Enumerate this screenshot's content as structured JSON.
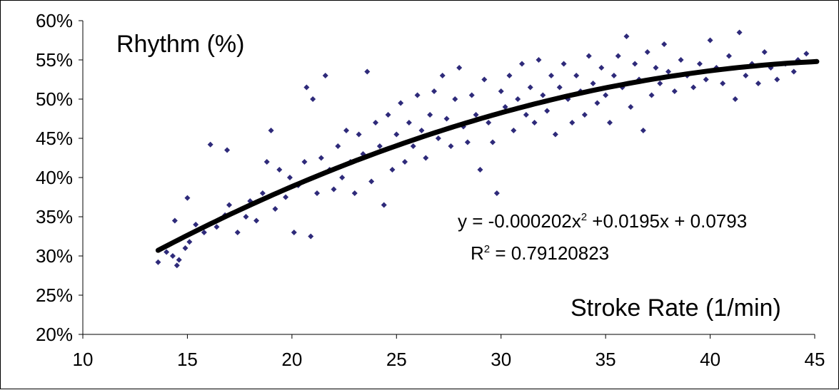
{
  "chart_data": {
    "type": "scatter",
    "title": "",
    "ylabel": "Rhythm (%)",
    "xlabel": "Stroke Rate (1/min)",
    "xlim": [
      10,
      45
    ],
    "ylim": [
      0.2,
      0.6
    ],
    "x_ticks": [
      "10",
      "15",
      "20",
      "25",
      "30",
      "35",
      "40",
      "45"
    ],
    "y_ticks": [
      "20%",
      "25%",
      "30%",
      "35%",
      "40%",
      "45%",
      "50%",
      "55%",
      "60%"
    ],
    "marker_color": "#2e2a7a",
    "trend_color": "#000000",
    "scatter_points": [
      [
        13.6,
        0.292
      ],
      [
        14.0,
        0.305
      ],
      [
        14.3,
        0.3
      ],
      [
        14.5,
        0.288
      ],
      [
        14.6,
        0.295
      ],
      [
        14.4,
        0.345
      ],
      [
        14.9,
        0.31
      ],
      [
        15.1,
        0.318
      ],
      [
        15.0,
        0.374
      ],
      [
        15.4,
        0.34
      ],
      [
        15.8,
        0.33
      ],
      [
        16.1,
        0.442
      ],
      [
        16.4,
        0.337
      ],
      [
        16.8,
        0.352
      ],
      [
        17.0,
        0.365
      ],
      [
        16.9,
        0.435
      ],
      [
        17.4,
        0.33
      ],
      [
        17.8,
        0.35
      ],
      [
        18.0,
        0.37
      ],
      [
        18.3,
        0.345
      ],
      [
        18.6,
        0.38
      ],
      [
        18.8,
        0.42
      ],
      [
        19.0,
        0.46
      ],
      [
        19.2,
        0.36
      ],
      [
        19.4,
        0.41
      ],
      [
        19.7,
        0.375
      ],
      [
        19.9,
        0.4
      ],
      [
        20.1,
        0.33
      ],
      [
        20.3,
        0.39
      ],
      [
        20.6,
        0.42
      ],
      [
        20.7,
        0.515
      ],
      [
        20.9,
        0.325
      ],
      [
        21.0,
        0.5
      ],
      [
        21.2,
        0.38
      ],
      [
        21.4,
        0.425
      ],
      [
        21.6,
        0.53
      ],
      [
        21.8,
        0.41
      ],
      [
        22.0,
        0.385
      ],
      [
        22.2,
        0.44
      ],
      [
        22.4,
        0.4
      ],
      [
        22.6,
        0.46
      ],
      [
        22.8,
        0.42
      ],
      [
        23.0,
        0.38
      ],
      [
        23.2,
        0.455
      ],
      [
        23.4,
        0.43
      ],
      [
        23.6,
        0.535
      ],
      [
        23.8,
        0.395
      ],
      [
        24.0,
        0.47
      ],
      [
        24.2,
        0.44
      ],
      [
        24.4,
        0.365
      ],
      [
        24.6,
        0.48
      ],
      [
        24.8,
        0.41
      ],
      [
        25.0,
        0.455
      ],
      [
        25.2,
        0.495
      ],
      [
        25.4,
        0.42
      ],
      [
        25.6,
        0.47
      ],
      [
        25.8,
        0.44
      ],
      [
        26.0,
        0.505
      ],
      [
        26.2,
        0.46
      ],
      [
        26.4,
        0.425
      ],
      [
        26.6,
        0.48
      ],
      [
        26.8,
        0.51
      ],
      [
        27.0,
        0.45
      ],
      [
        27.2,
        0.53
      ],
      [
        27.4,
        0.475
      ],
      [
        27.6,
        0.44
      ],
      [
        27.8,
        0.5
      ],
      [
        28.0,
        0.54
      ],
      [
        28.2,
        0.465
      ],
      [
        28.4,
        0.445
      ],
      [
        28.6,
        0.505
      ],
      [
        28.8,
        0.48
      ],
      [
        29.0,
        0.41
      ],
      [
        29.2,
        0.525
      ],
      [
        29.4,
        0.47
      ],
      [
        29.6,
        0.445
      ],
      [
        29.8,
        0.38
      ],
      [
        30.0,
        0.51
      ],
      [
        30.2,
        0.49
      ],
      [
        30.4,
        0.53
      ],
      [
        30.6,
        0.46
      ],
      [
        30.8,
        0.5
      ],
      [
        31.0,
        0.545
      ],
      [
        31.2,
        0.48
      ],
      [
        31.4,
        0.515
      ],
      [
        31.6,
        0.47
      ],
      [
        31.8,
        0.55
      ],
      [
        32.0,
        0.505
      ],
      [
        32.2,
        0.485
      ],
      [
        32.4,
        0.53
      ],
      [
        32.6,
        0.455
      ],
      [
        32.8,
        0.515
      ],
      [
        33.0,
        0.545
      ],
      [
        33.2,
        0.5
      ],
      [
        33.4,
        0.47
      ],
      [
        33.6,
        0.53
      ],
      [
        33.8,
        0.51
      ],
      [
        34.0,
        0.48
      ],
      [
        34.2,
        0.555
      ],
      [
        34.4,
        0.52
      ],
      [
        34.6,
        0.495
      ],
      [
        34.8,
        0.54
      ],
      [
        35.0,
        0.505
      ],
      [
        35.2,
        0.47
      ],
      [
        35.4,
        0.53
      ],
      [
        35.6,
        0.555
      ],
      [
        35.8,
        0.515
      ],
      [
        36.0,
        0.58
      ],
      [
        36.2,
        0.49
      ],
      [
        36.4,
        0.545
      ],
      [
        36.6,
        0.525
      ],
      [
        36.8,
        0.46
      ],
      [
        37.0,
        0.56
      ],
      [
        37.2,
        0.505
      ],
      [
        37.4,
        0.54
      ],
      [
        37.6,
        0.52
      ],
      [
        37.8,
        0.57
      ],
      [
        38.0,
        0.535
      ],
      [
        38.3,
        0.51
      ],
      [
        38.6,
        0.55
      ],
      [
        38.9,
        0.53
      ],
      [
        39.2,
        0.515
      ],
      [
        39.5,
        0.545
      ],
      [
        39.8,
        0.525
      ],
      [
        40.0,
        0.575
      ],
      [
        40.3,
        0.54
      ],
      [
        40.6,
        0.52
      ],
      [
        40.9,
        0.555
      ],
      [
        41.2,
        0.5
      ],
      [
        41.4,
        0.585
      ],
      [
        41.7,
        0.53
      ],
      [
        42.0,
        0.545
      ],
      [
        42.3,
        0.52
      ],
      [
        42.6,
        0.56
      ],
      [
        42.9,
        0.54
      ],
      [
        43.2,
        0.525
      ],
      [
        43.6,
        0.545
      ],
      [
        44.0,
        0.535
      ],
      [
        44.2,
        0.55
      ],
      [
        44.6,
        0.558
      ]
    ],
    "trendline": {
      "type": "polynomial",
      "coefficients": [
        -0.000202,
        0.0195,
        0.0793
      ],
      "equation_lines": [
        "y = -0.000202x",
        "2",
        " +0.0195x + 0.0793"
      ],
      "r2_label_lines": [
        "R",
        "2",
        " = 0.79120823"
      ]
    }
  }
}
